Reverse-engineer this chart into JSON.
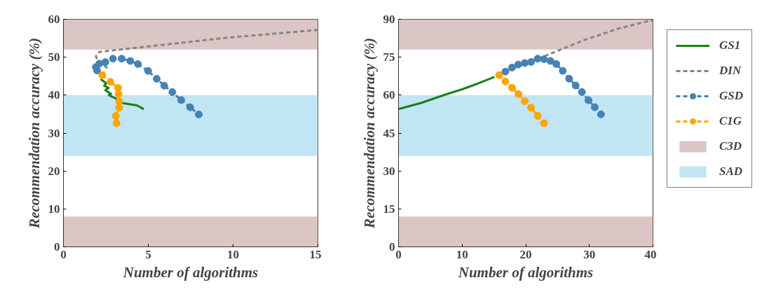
{
  "chart_data": [
    {
      "type": "line",
      "xlabel": "Number of algorithms",
      "ylabel": "Recommendation accuracy (%)",
      "xlim": [
        0,
        15
      ],
      "ylim": [
        0,
        60
      ],
      "xticks": [
        0,
        5,
        10,
        15
      ],
      "yticks": [
        0,
        10,
        20,
        30,
        40,
        50,
        60
      ],
      "grid": false,
      "legend": false,
      "bands": [
        {
          "axis": "y",
          "from": 52,
          "to": 60,
          "color": "#dcc5c5"
        },
        {
          "axis": "y",
          "from": 0,
          "to": 8,
          "color": "#dcc5c5"
        },
        {
          "axis": "y",
          "from": 24,
          "to": 40,
          "color": "#c2e5f3"
        }
      ],
      "series": [
        {
          "color": "#1a7f1a",
          "line_style": "solid",
          "marker": "none",
          "x": [
            2.19,
            2.53,
            2.4,
            2.67,
            2.47,
            2.81,
            2.67,
            3.09,
            3.5,
            4.33,
            4.74
          ],
          "values": [
            44.2,
            43.1,
            42.5,
            41.9,
            41.3,
            40.3,
            40.0,
            39.1,
            37.9,
            37.3,
            36.3
          ]
        },
        {
          "color": "#858585",
          "line_style": "dashed",
          "marker": "none",
          "x": [
            2.6,
            2.33,
            1.98,
            1.91,
            2.12,
            9.56,
            15
          ],
          "values": [
            47.1,
            48.0,
            49.6,
            50.2,
            51.4,
            55.1,
            57.2
          ]
        },
        {
          "color": "#4682b4",
          "line_style": "dashed",
          "marker": "circle",
          "x": [
            1.98,
            1.91,
            2.12,
            2.47,
            2.92,
            3.43,
            3.94,
            4.39,
            4.99,
            5.5,
            5.94,
            6.42,
            6.94,
            7.47,
            7.98
          ],
          "values": [
            46.5,
            47.4,
            48.3,
            48.7,
            49.6,
            49.6,
            49.0,
            48.2,
            46.4,
            44.3,
            42.5,
            40.8,
            38.7,
            36.8,
            34.9
          ]
        },
        {
          "color": "#ffa500",
          "line_style": "dashed",
          "marker": "circle",
          "x": [
            2.29,
            2.77,
            3.22,
            3.25,
            3.29,
            3.29,
            3.09,
            3.13
          ],
          "values": [
            45.3,
            43.5,
            41.9,
            40.3,
            38.3,
            36.7,
            34.5,
            32.6
          ]
        }
      ]
    },
    {
      "type": "line",
      "xlabel": "Number of algorithms",
      "ylabel": "Recommendation accuracy (%)",
      "xlim": [
        0,
        40
      ],
      "ylim": [
        0,
        90
      ],
      "xticks": [
        0,
        10,
        20,
        30,
        40
      ],
      "yticks": [
        0,
        15,
        30,
        45,
        60,
        75,
        90
      ],
      "grid": false,
      "legend": "right",
      "bands": [
        {
          "axis": "y",
          "from": 78,
          "to": 90,
          "color": "#dcc5c5",
          "label": "C3D"
        },
        {
          "axis": "y",
          "from": 0,
          "to": 12,
          "color": "#dcc5c5"
        },
        {
          "axis": "y",
          "from": 36,
          "to": 60,
          "color": "#c2e5f3",
          "label": "SAD"
        }
      ],
      "series": [
        {
          "name": "GS1",
          "color": "#1a7f1a",
          "line_style": "solid",
          "marker": "none",
          "x": [
            0,
            3.55,
            7.22,
            10,
            12.5,
            15.09
          ],
          "values": [
            54.5,
            56.9,
            60.1,
            62.3,
            64.6,
            67.2
          ]
        },
        {
          "name": "DIN",
          "color": "#858585",
          "line_style": "dashed",
          "marker": "none",
          "x": [
            17.84,
            23.7,
            29.2,
            34.7,
            39.1,
            40
          ],
          "values": [
            70.3,
            76.2,
            81.8,
            86.4,
            89.2,
            89.5
          ]
        },
        {
          "name": "GSD",
          "color": "#4682b4",
          "line_style": "dashed",
          "marker": "circle",
          "x": [
            16.8,
            17.84,
            18.82,
            19.85,
            20.84,
            21.87,
            22.86,
            23.88,
            24.8,
            25.82,
            26.81,
            27.84,
            28.83,
            29.85,
            30.85,
            31.83
          ],
          "values": [
            69.3,
            70.9,
            72.1,
            72.7,
            73.1,
            74.4,
            74.2,
            73.5,
            72.3,
            69.6,
            66.5,
            63.8,
            61.2,
            58.0,
            55.2,
            52.4
          ]
        },
        {
          "name": "C1G",
          "color": "#ffa500",
          "line_style": "dashed",
          "marker": "circle",
          "x": [
            15.82,
            16.8,
            17.84,
            18.86,
            19.85,
            20.84,
            21.87,
            22.86
          ],
          "values": [
            67.9,
            65.4,
            62.9,
            60.4,
            57.6,
            55.0,
            51.8,
            48.9
          ]
        }
      ]
    }
  ]
}
